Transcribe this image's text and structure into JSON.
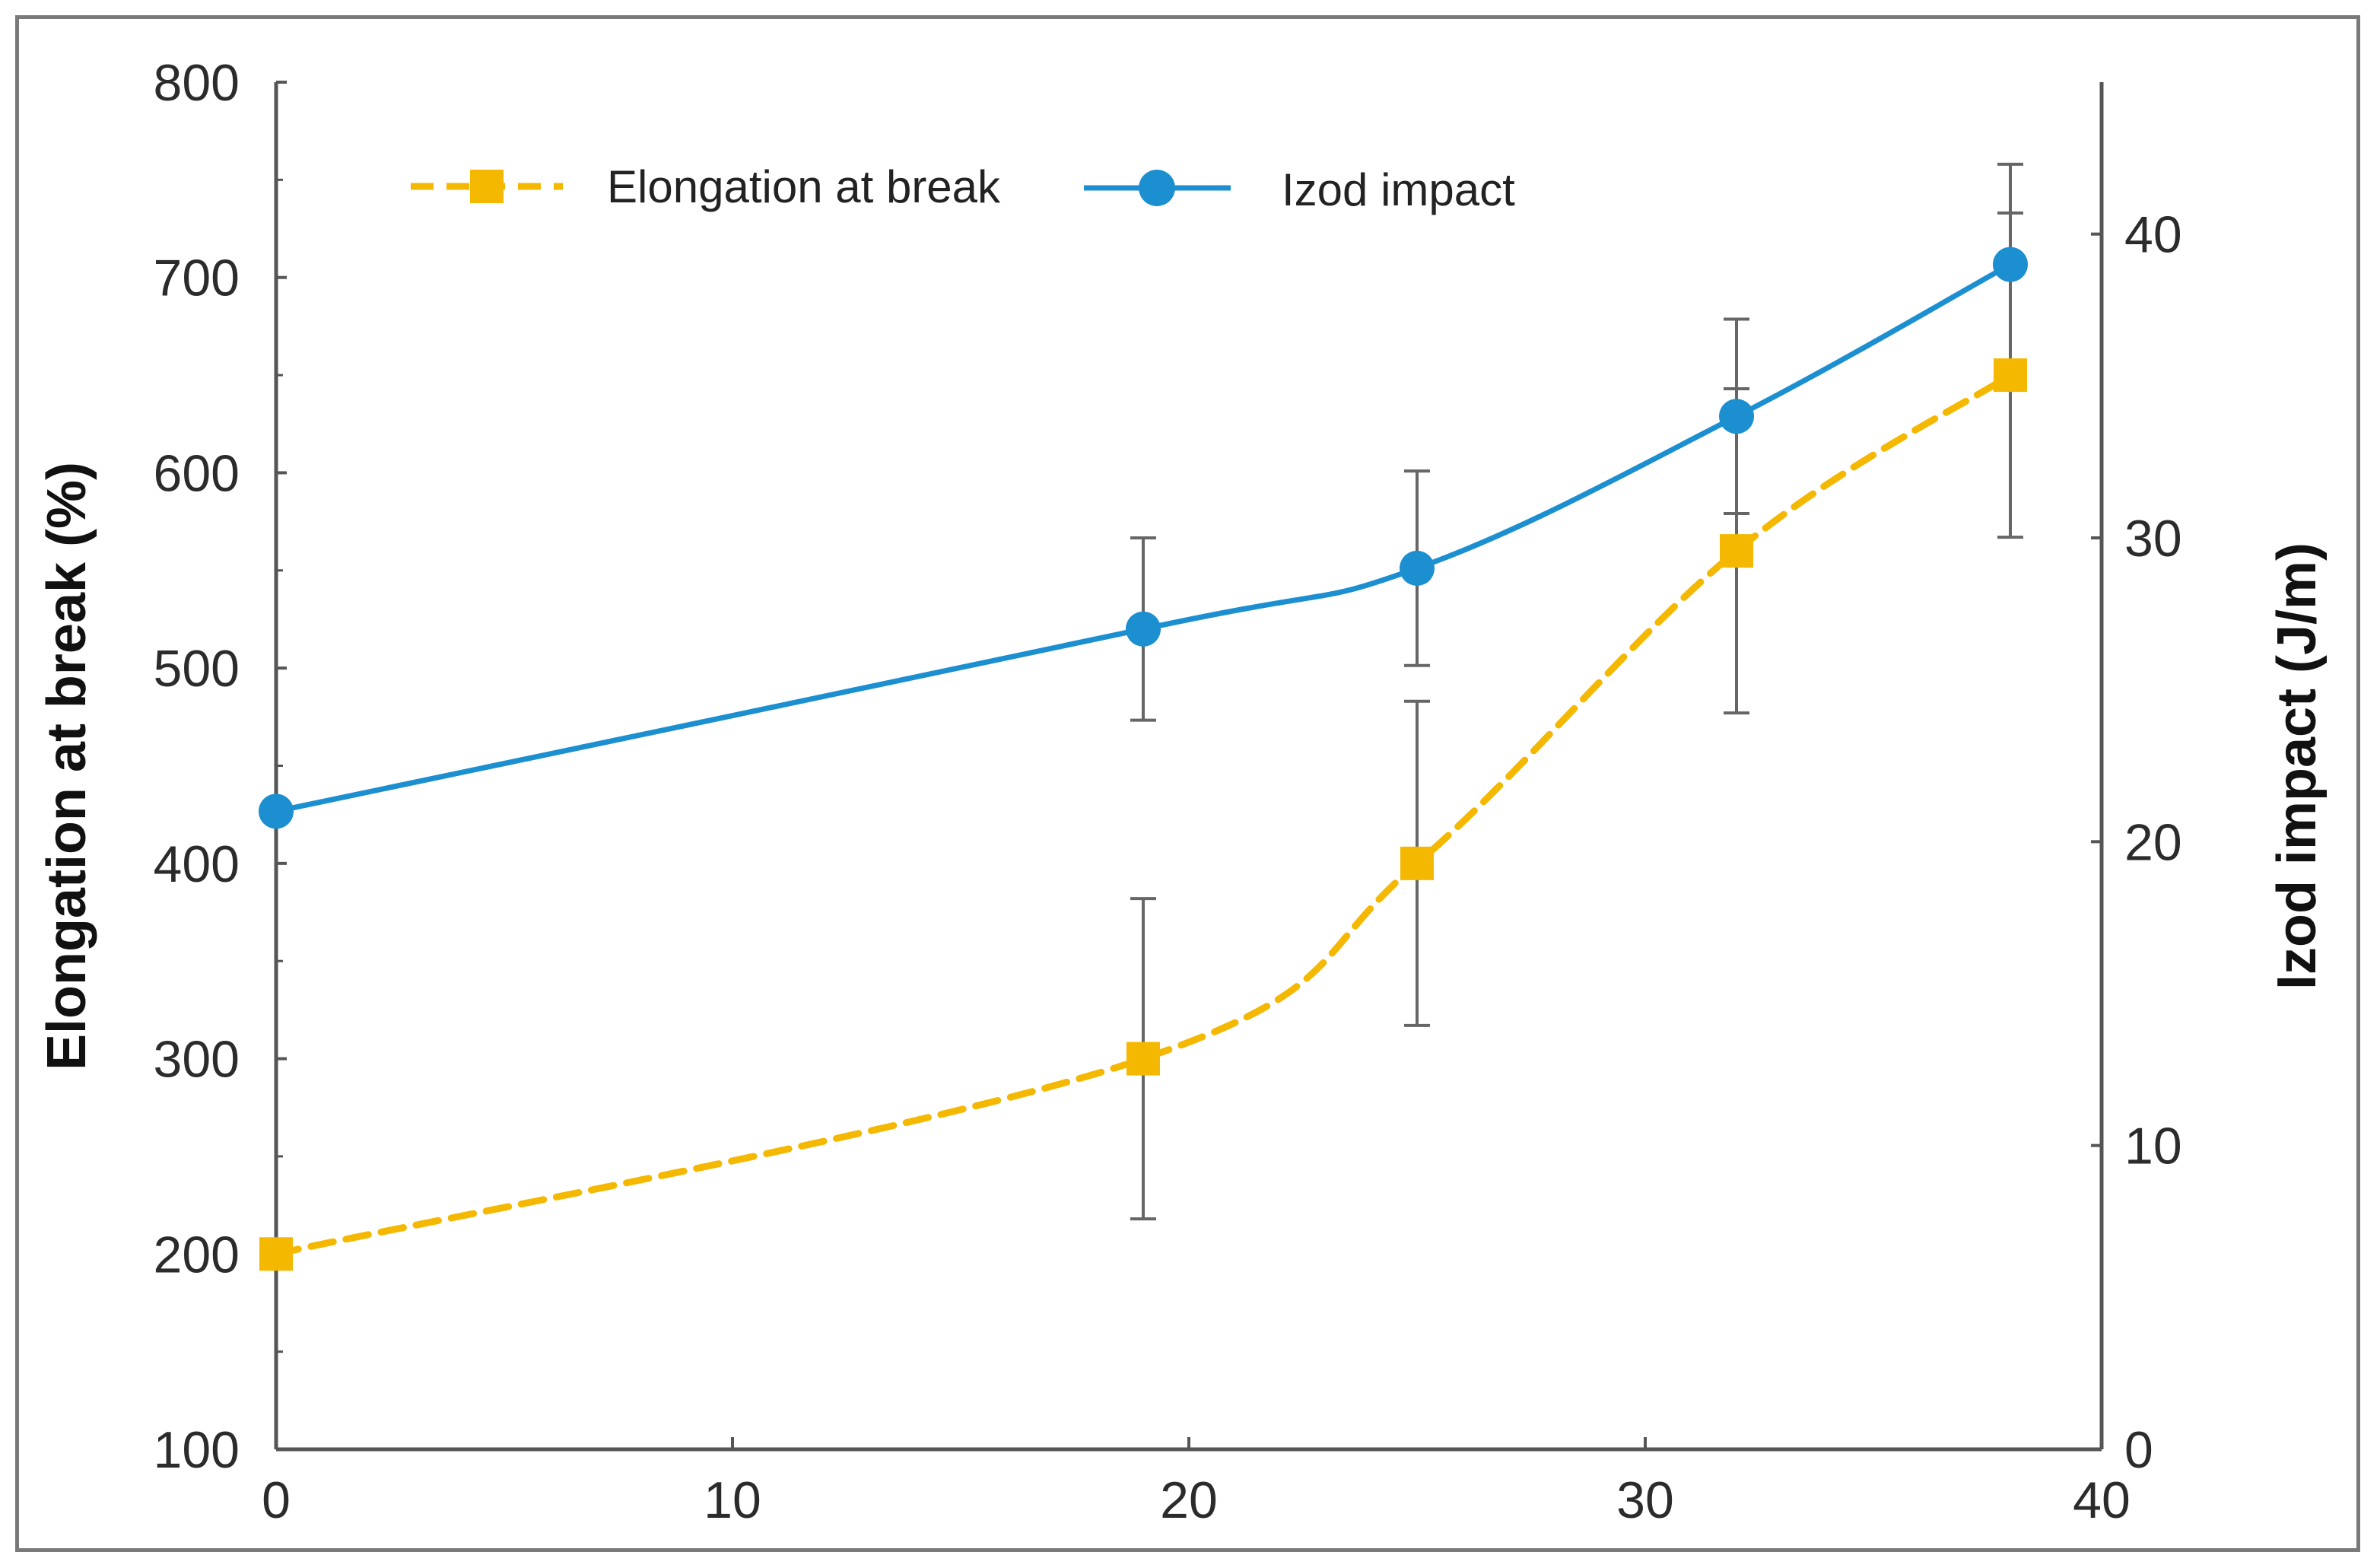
{
  "chart_data": {
    "type": "line",
    "title": "",
    "xlabel": "",
    "ylabel": "Elongation at break (%)",
    "y2label": "Izod impact (J/m)",
    "xlim": [
      0,
      40
    ],
    "ylim": [
      100,
      800
    ],
    "y2lim": [
      0,
      45
    ],
    "x_ticks": [
      "0",
      "10",
      "20",
      "30",
      "40"
    ],
    "y_ticks": [
      "100",
      "200",
      "300",
      "400",
      "500",
      "600",
      "700",
      "800"
    ],
    "y2_ticks": [
      "0",
      "10",
      "20",
      "30",
      "40"
    ],
    "legend_position": "top-left",
    "series": [
      {
        "name": "Elongation at break",
        "axis": "left",
        "color": "#F5B800",
        "style": "dashed",
        "marker": "square",
        "x": [
          0,
          19,
          25,
          32,
          38
        ],
        "values": [
          200,
          300,
          400,
          560,
          650
        ],
        "error": [
          null,
          82,
          83,
          83,
          83
        ]
      },
      {
        "name": "Izod impact",
        "axis": "right",
        "color": "#1C8FD0",
        "style": "solid",
        "marker": "circle",
        "x": [
          0,
          19,
          25,
          32,
          38
        ],
        "values": [
          21,
          27,
          29,
          34,
          39
        ],
        "error": [
          null,
          3,
          3.2,
          3.2,
          3.3
        ]
      }
    ]
  }
}
